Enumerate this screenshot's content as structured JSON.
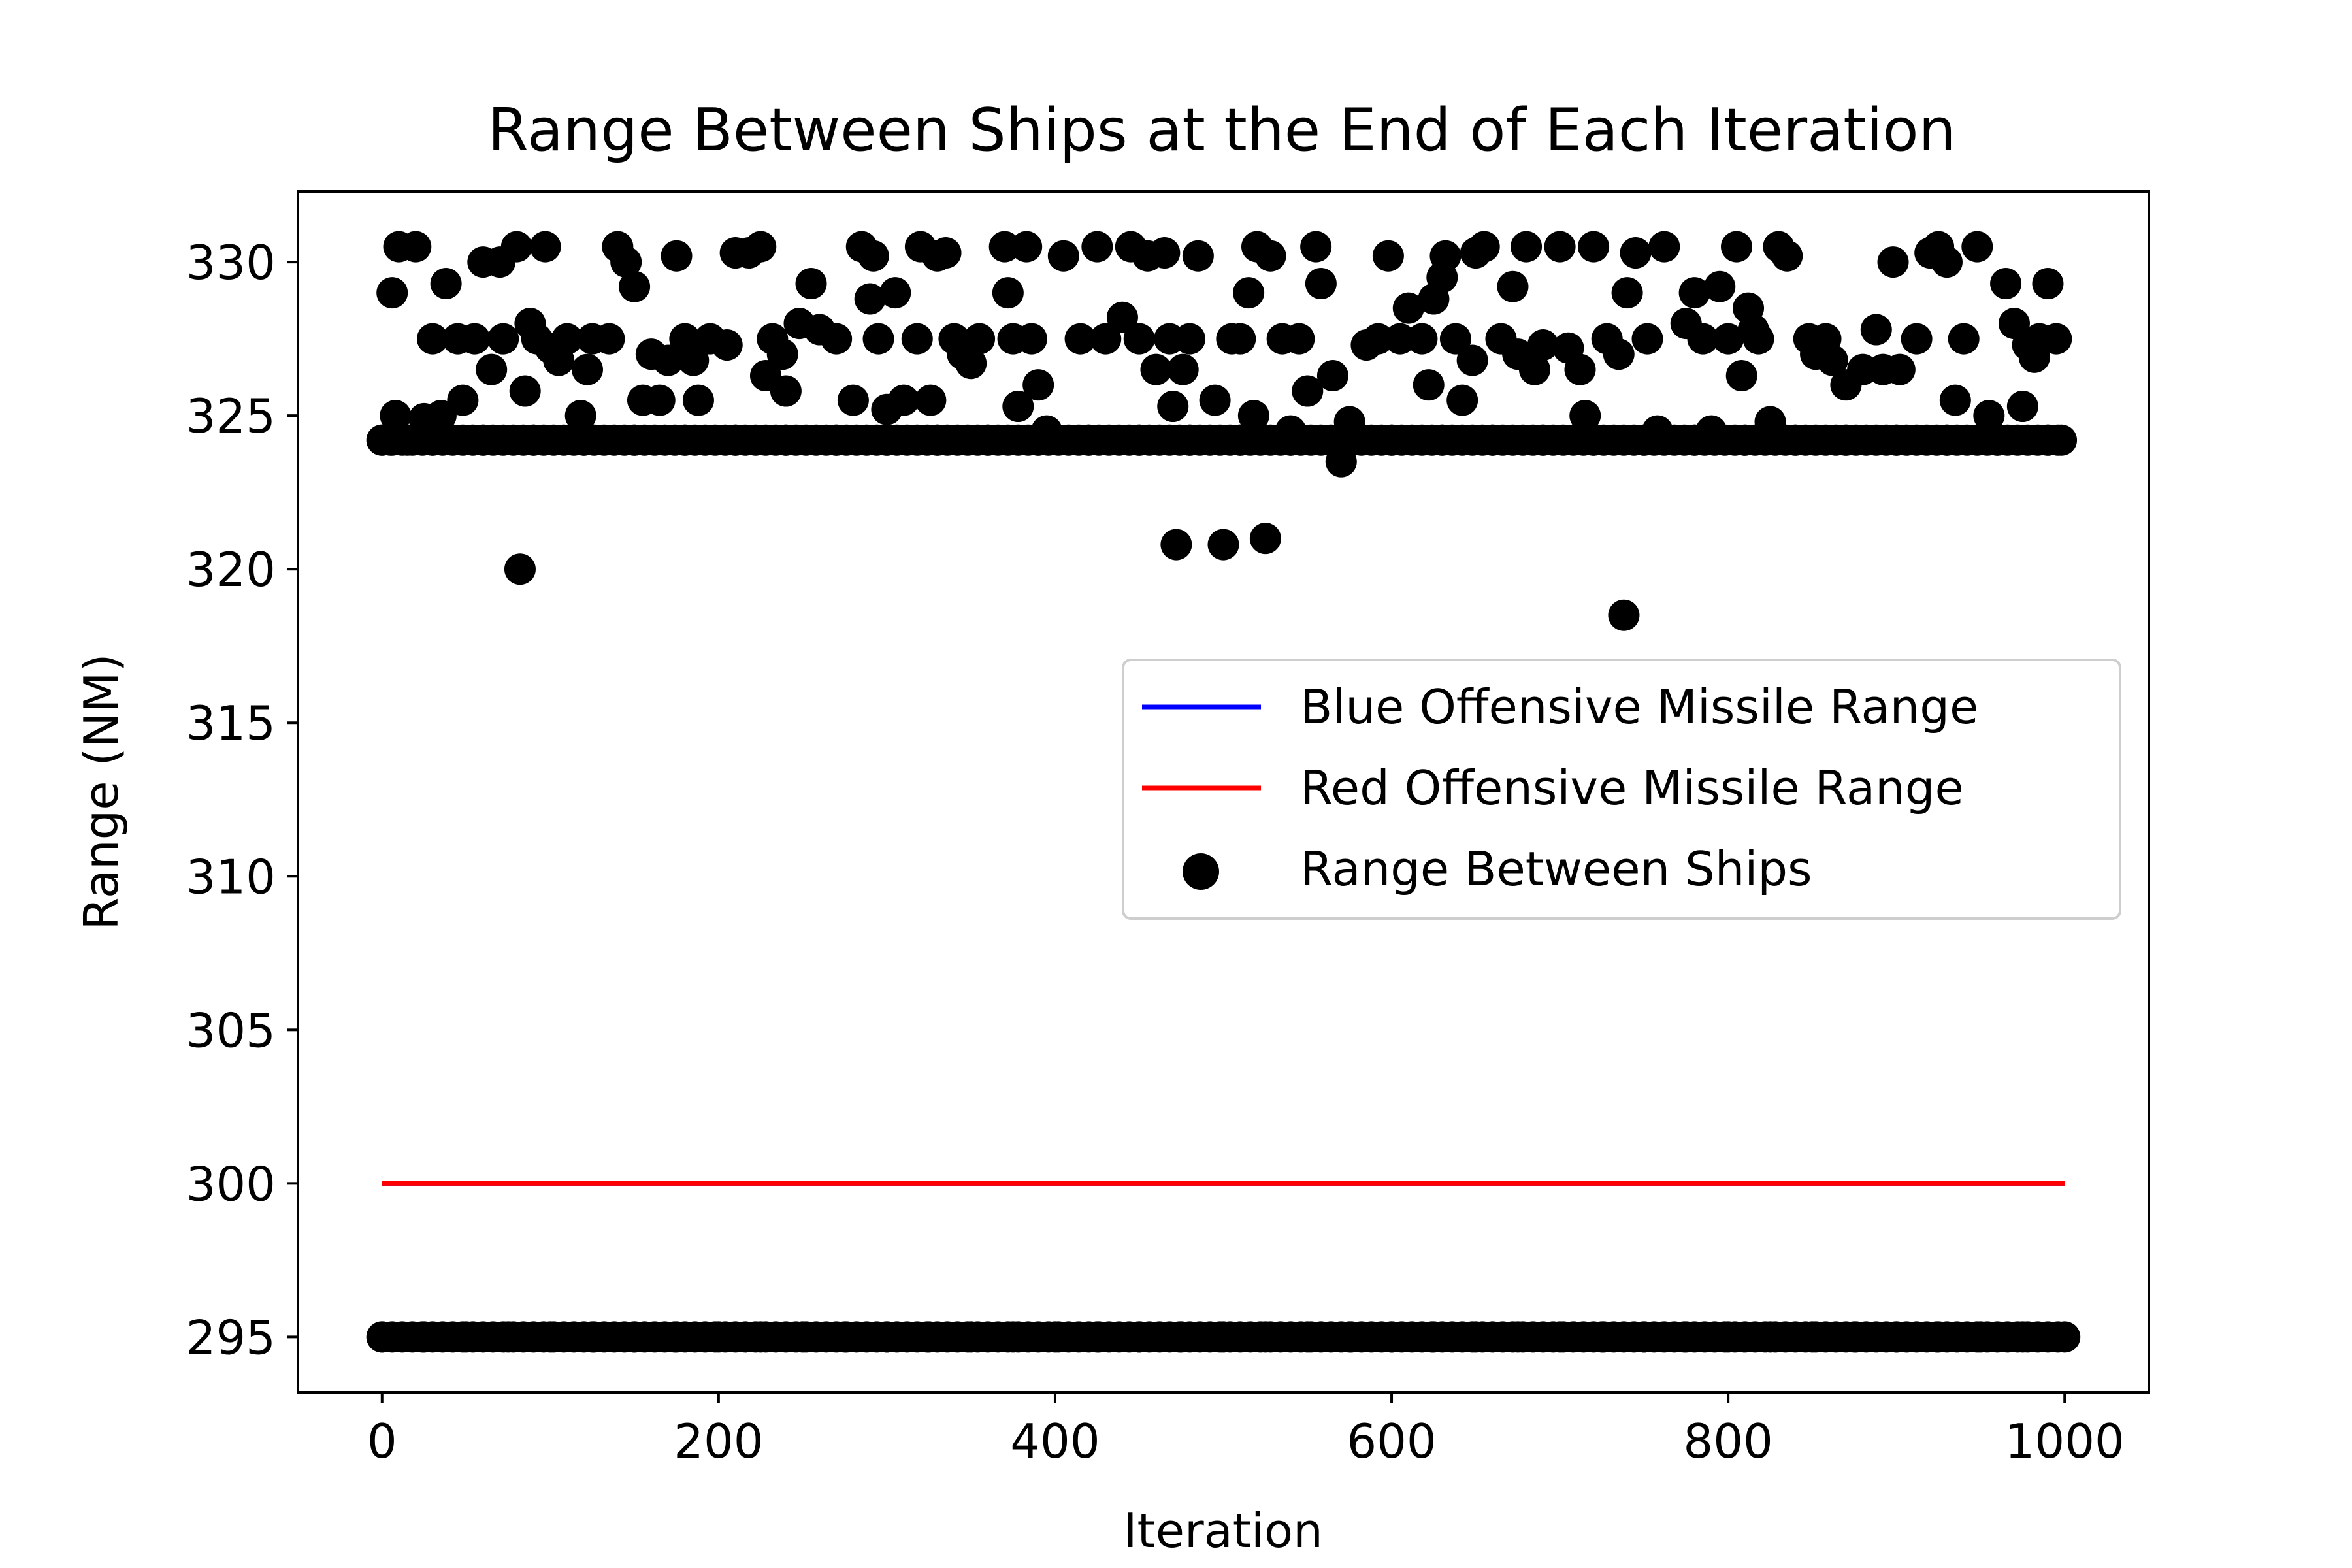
{
  "chart_data": {
    "type": "scatter",
    "title": "Range Between Ships at the End of Each Iteration",
    "xlabel": "Iteration",
    "ylabel": "Range (NM)",
    "xlim": [
      -50,
      1050
    ],
    "ylim": [
      293.2,
      332.3
    ],
    "xticks": [
      0,
      200,
      400,
      600,
      800,
      1000
    ],
    "yticks": [
      295,
      300,
      305,
      310,
      315,
      320,
      325,
      330
    ],
    "grid": false,
    "legend_position": "center-right",
    "colors": {
      "blue_line": "#0000ff",
      "red_line": "#ff0000",
      "points": "#000000"
    },
    "series": [
      {
        "name": "Blue Offensive Missile Range",
        "kind": "line",
        "x": [
          0,
          1000
        ],
        "y": [
          300,
          300
        ],
        "color": "#0000ff"
      },
      {
        "name": "Red Offensive Missile Range",
        "kind": "line",
        "x": [
          0,
          1000
        ],
        "y": [
          300,
          300
        ],
        "color": "#ff0000"
      },
      {
        "name": "Range Between Ships",
        "kind": "scatter",
        "color": "#000000",
        "points": [
          [
            0,
            324.2
          ],
          [
            6,
            329
          ],
          [
            10,
            330.5
          ],
          [
            8,
            325
          ],
          [
            15,
            324.2
          ],
          [
            20,
            330.5
          ],
          [
            25,
            324.9
          ],
          [
            30,
            327.5
          ],
          [
            35,
            325
          ],
          [
            38,
            329.3
          ],
          [
            45,
            327.5
          ],
          [
            48,
            325.5
          ],
          [
            55,
            327.5
          ],
          [
            60,
            330
          ],
          [
            65,
            326.5
          ],
          [
            70,
            330
          ],
          [
            72,
            327.5
          ],
          [
            80,
            330.5
          ],
          [
            82,
            320
          ],
          [
            85,
            325.8
          ],
          [
            88,
            328
          ],
          [
            92,
            327.5
          ],
          [
            97,
            330.5
          ],
          [
            100,
            327.2
          ],
          [
            105,
            326.8
          ],
          [
            110,
            327.5
          ],
          [
            118,
            325
          ],
          [
            122,
            326.5
          ],
          [
            125,
            327.5
          ],
          [
            135,
            327.5
          ],
          [
            140,
            330.5
          ],
          [
            145,
            330
          ],
          [
            150,
            329.2
          ],
          [
            155,
            325.5
          ],
          [
            160,
            327
          ],
          [
            165,
            325.5
          ],
          [
            170,
            326.8
          ],
          [
            175,
            330.2
          ],
          [
            180,
            327.5
          ],
          [
            185,
            326.8
          ],
          [
            188,
            325.5
          ],
          [
            195,
            327.5
          ],
          [
            205,
            327.3
          ],
          [
            210,
            330.3
          ],
          [
            218,
            330.3
          ],
          [
            225,
            330.5
          ],
          [
            228,
            326.3
          ],
          [
            232,
            327.5
          ],
          [
            238,
            327
          ],
          [
            240,
            325.8
          ],
          [
            248,
            328
          ],
          [
            255,
            329.3
          ],
          [
            260,
            327.8
          ],
          [
            270,
            327.5
          ],
          [
            280,
            325.5
          ],
          [
            285,
            330.5
          ],
          [
            290,
            328.8
          ],
          [
            292,
            330.2
          ],
          [
            295,
            327.5
          ],
          [
            300,
            325.2
          ],
          [
            305,
            329
          ],
          [
            310,
            325.5
          ],
          [
            318,
            327.5
          ],
          [
            320,
            330.5
          ],
          [
            326,
            325.5
          ],
          [
            330,
            330.2
          ],
          [
            335,
            330.3
          ],
          [
            340,
            327.5
          ],
          [
            345,
            327
          ],
          [
            350,
            326.7
          ],
          [
            355,
            327.5
          ],
          [
            370,
            330.5
          ],
          [
            372,
            329
          ],
          [
            375,
            327.5
          ],
          [
            378,
            325.3
          ],
          [
            383,
            330.5
          ],
          [
            386,
            327.5
          ],
          [
            390,
            326
          ],
          [
            395,
            324.5
          ],
          [
            405,
            330.2
          ],
          [
            415,
            327.5
          ],
          [
            425,
            330.5
          ],
          [
            430,
            327.5
          ],
          [
            440,
            328.2
          ],
          [
            445,
            330.5
          ],
          [
            450,
            327.5
          ],
          [
            455,
            330.2
          ],
          [
            460,
            326.5
          ],
          [
            465,
            330.3
          ],
          [
            468,
            327.5
          ],
          [
            470,
            325.3
          ],
          [
            472,
            320.8
          ],
          [
            476,
            326.5
          ],
          [
            480,
            327.5
          ],
          [
            485,
            330.2
          ],
          [
            495,
            325.5
          ],
          [
            500,
            320.8
          ],
          [
            505,
            327.5
          ],
          [
            510,
            327.5
          ],
          [
            515,
            329
          ],
          [
            518,
            325
          ],
          [
            520,
            330.5
          ],
          [
            525,
            321
          ],
          [
            528,
            330.2
          ],
          [
            535,
            327.5
          ],
          [
            540,
            324.5
          ],
          [
            545,
            327.5
          ],
          [
            550,
            325.8
          ],
          [
            555,
            330.5
          ],
          [
            558,
            329.3
          ],
          [
            565,
            326.3
          ],
          [
            570,
            323.5
          ],
          [
            575,
            324.8
          ],
          [
            585,
            327.3
          ],
          [
            592,
            327.5
          ],
          [
            598,
            330.2
          ],
          [
            605,
            327.5
          ],
          [
            610,
            328.5
          ],
          [
            618,
            327.5
          ],
          [
            622,
            326
          ],
          [
            625,
            328.8
          ],
          [
            630,
            329.5
          ],
          [
            632,
            330.2
          ],
          [
            638,
            327.5
          ],
          [
            642,
            325.5
          ],
          [
            648,
            326.8
          ],
          [
            650,
            330.3
          ],
          [
            655,
            330.5
          ],
          [
            665,
            327.5
          ],
          [
            672,
            329.2
          ],
          [
            675,
            327
          ],
          [
            680,
            330.5
          ],
          [
            685,
            326.5
          ],
          [
            690,
            327.3
          ],
          [
            700,
            330.5
          ],
          [
            705,
            327.2
          ],
          [
            712,
            326.5
          ],
          [
            715,
            325
          ],
          [
            720,
            330.5
          ],
          [
            728,
            327.5
          ],
          [
            735,
            327
          ],
          [
            738,
            318.5
          ],
          [
            740,
            329
          ],
          [
            745,
            330.3
          ],
          [
            752,
            327.5
          ],
          [
            758,
            324.5
          ],
          [
            762,
            330.5
          ],
          [
            775,
            328
          ],
          [
            780,
            329
          ],
          [
            785,
            327.5
          ],
          [
            790,
            324.5
          ],
          [
            795,
            329.2
          ],
          [
            800,
            327.5
          ],
          [
            805,
            330.5
          ],
          [
            808,
            326.3
          ],
          [
            812,
            328.5
          ],
          [
            815,
            327.8
          ],
          [
            818,
            327.5
          ],
          [
            825,
            324.8
          ],
          [
            830,
            330.5
          ],
          [
            835,
            330.2
          ],
          [
            848,
            327.5
          ],
          [
            852,
            327
          ],
          [
            858,
            327.5
          ],
          [
            862,
            326.8
          ],
          [
            870,
            326
          ],
          [
            880,
            326.5
          ],
          [
            888,
            327.8
          ],
          [
            892,
            326.5
          ],
          [
            898,
            330
          ],
          [
            902,
            326.5
          ],
          [
            912,
            327.5
          ],
          [
            920,
            330.3
          ],
          [
            925,
            330.5
          ],
          [
            930,
            330
          ],
          [
            935,
            325.5
          ],
          [
            940,
            327.5
          ],
          [
            948,
            330.5
          ],
          [
            955,
            325
          ],
          [
            965,
            329.3
          ],
          [
            970,
            328
          ],
          [
            975,
            325.3
          ],
          [
            978,
            327.3
          ],
          [
            982,
            326.9
          ],
          [
            985,
            327.5
          ],
          [
            990,
            329.3
          ],
          [
            995,
            327.5
          ],
          [
            998,
            324.2
          ],
          [
            5,
            324.2
          ],
          [
            30,
            324.2
          ],
          [
            60,
            324.2
          ],
          [
            90,
            324.2
          ],
          [
            120,
            324.2
          ],
          [
            150,
            324.2
          ],
          [
            180,
            324.2
          ],
          [
            210,
            324.2
          ],
          [
            240,
            324.2
          ],
          [
            270,
            324.2
          ],
          [
            300,
            324.2
          ],
          [
            330,
            324.2
          ],
          [
            360,
            324.2
          ],
          [
            390,
            324.2
          ],
          [
            420,
            324.2
          ],
          [
            450,
            324.2
          ],
          [
            480,
            324.2
          ],
          [
            510,
            324.2
          ],
          [
            540,
            324.2
          ],
          [
            570,
            324.2
          ],
          [
            600,
            324.2
          ],
          [
            630,
            324.2
          ],
          [
            660,
            324.2
          ],
          [
            690,
            324.2
          ],
          [
            720,
            324.2
          ],
          [
            750,
            324.2
          ],
          [
            780,
            324.2
          ],
          [
            810,
            324.2
          ],
          [
            840,
            324.2
          ],
          [
            870,
            324.2
          ],
          [
            900,
            324.2
          ],
          [
            930,
            324.2
          ],
          [
            960,
            324.2
          ],
          [
            990,
            324.2
          ],
          [
            0,
            295
          ],
          [
            25,
            295
          ],
          [
            50,
            295
          ],
          [
            75,
            295
          ],
          [
            100,
            295
          ],
          [
            125,
            295
          ],
          [
            150,
            295
          ],
          [
            175,
            295
          ],
          [
            200,
            295
          ],
          [
            225,
            295
          ],
          [
            250,
            295
          ],
          [
            275,
            295
          ],
          [
            300,
            295
          ],
          [
            325,
            295
          ],
          [
            350,
            295
          ],
          [
            375,
            295
          ],
          [
            400,
            295
          ],
          [
            425,
            295
          ],
          [
            450,
            295
          ],
          [
            475,
            295
          ],
          [
            500,
            295
          ],
          [
            525,
            295
          ],
          [
            550,
            295
          ],
          [
            575,
            295
          ],
          [
            600,
            295
          ],
          [
            625,
            295
          ],
          [
            650,
            295
          ],
          [
            675,
            295
          ],
          [
            700,
            295
          ],
          [
            725,
            295
          ],
          [
            750,
            295
          ],
          [
            775,
            295
          ],
          [
            800,
            295
          ],
          [
            825,
            295
          ],
          [
            850,
            295
          ],
          [
            875,
            295
          ],
          [
            900,
            295
          ],
          [
            925,
            295
          ],
          [
            950,
            295
          ],
          [
            975,
            295
          ],
          [
            1000,
            295
          ]
        ]
      }
    ]
  }
}
